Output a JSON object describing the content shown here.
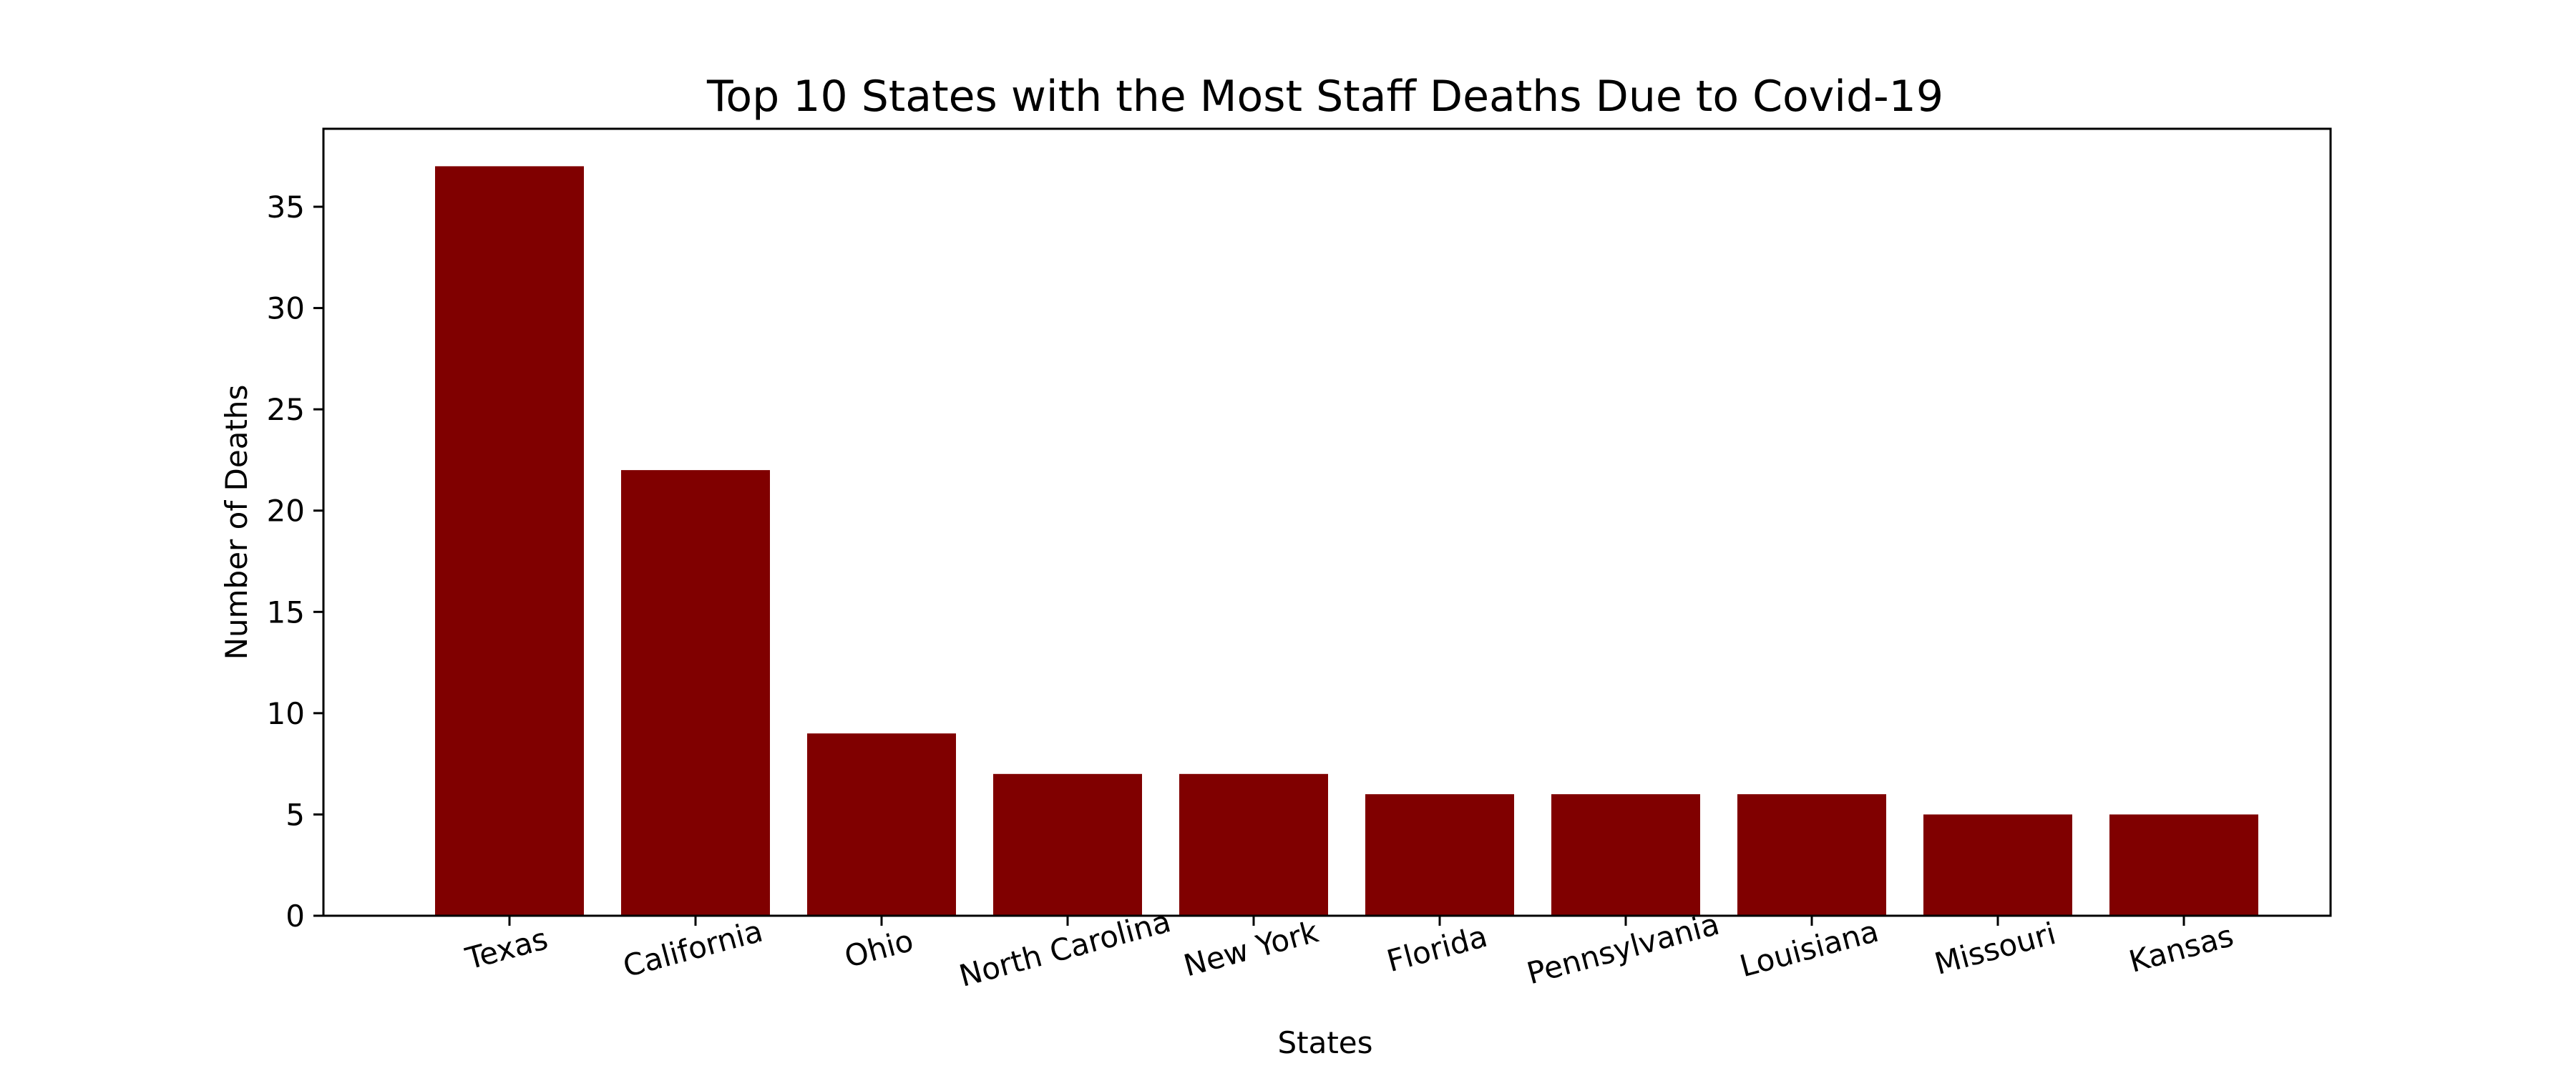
{
  "chart_data": {
    "type": "bar",
    "title": "Top 10 States with the Most Staff Deaths Due to Covid-19",
    "xlabel": "States",
    "ylabel": "Number of Deaths",
    "categories": [
      "Texas",
      "California",
      "Ohio",
      "North Carolina",
      "New York",
      "Florida",
      "Pennsylvania",
      "Louisiana",
      "Missouri",
      "Kansas"
    ],
    "values": [
      37,
      22,
      9,
      7,
      7,
      6,
      6,
      6,
      5,
      5
    ],
    "ylim": [
      0,
      38.85
    ],
    "yticks": [
      0,
      5,
      10,
      15,
      20,
      25,
      30,
      35
    ],
    "x_tick_rotation_deg": -15,
    "grid": false,
    "legend": "none",
    "colors": {
      "bar": "#800000",
      "axis": "#000000",
      "background": "#ffffff"
    }
  }
}
